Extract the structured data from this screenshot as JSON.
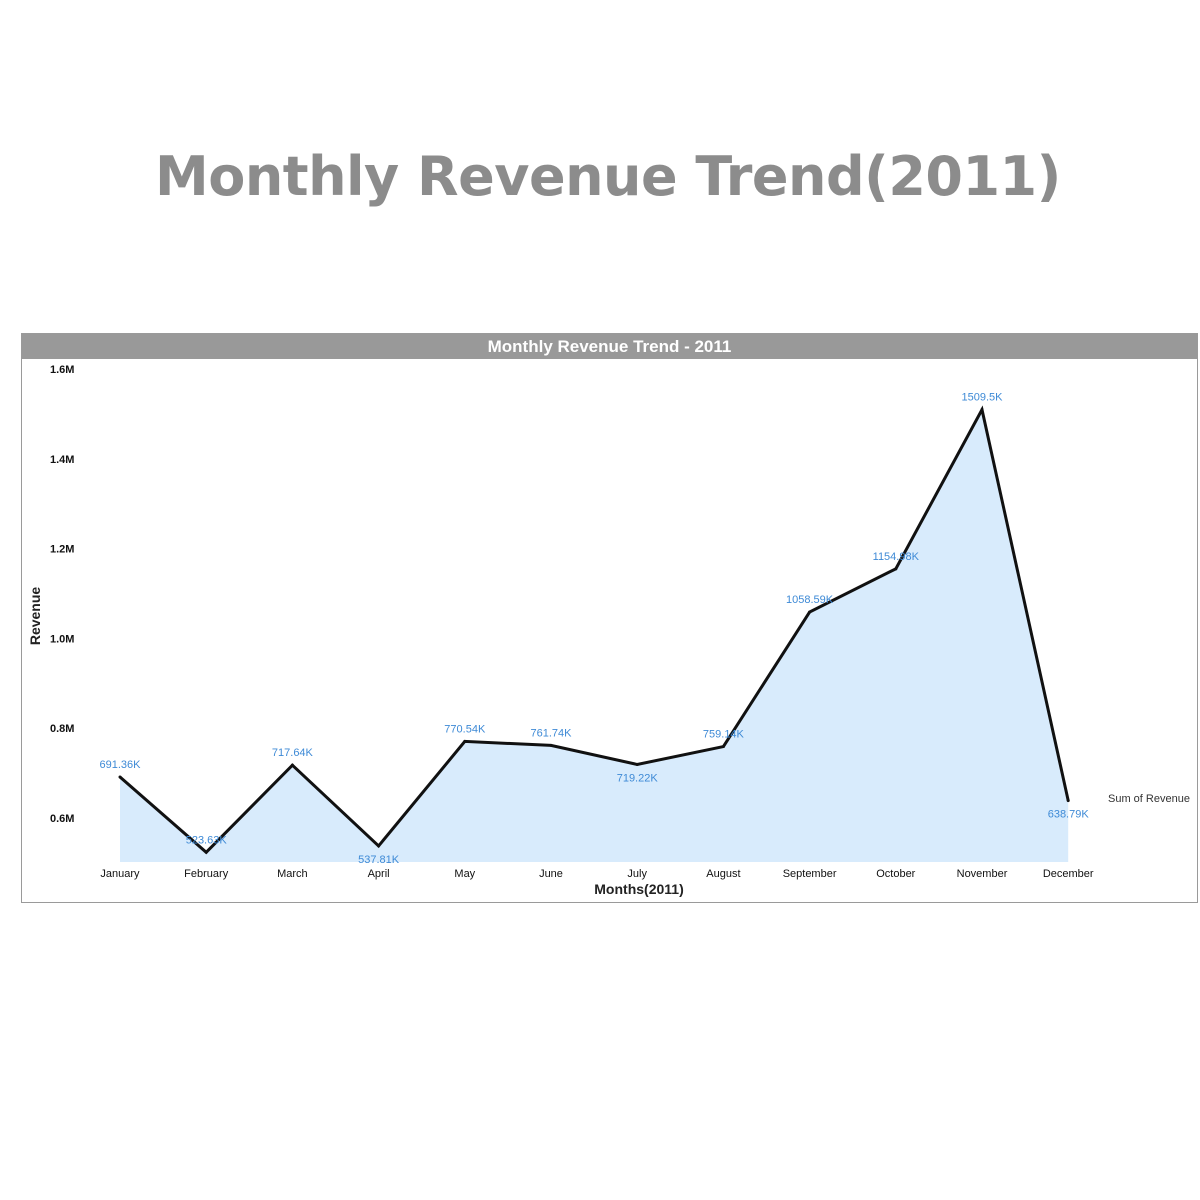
{
  "page_title": "Monthly Revenue Trend(2011)",
  "chart_data": {
    "type": "area",
    "title": "Monthly Revenue Trend - 2011",
    "xlabel": "Months(2011)",
    "ylabel": "Revenue",
    "categories": [
      "January",
      "February",
      "March",
      "April",
      "May",
      "June",
      "July",
      "August",
      "September",
      "October",
      "November",
      "December"
    ],
    "series": [
      {
        "name": "Sum of Revenue",
        "values": [
          691.36,
          523.63,
          717.64,
          537.81,
          770.54,
          761.74,
          719.22,
          759.14,
          1058.59,
          1154.98,
          1509.5,
          638.79
        ],
        "labels": [
          "691.36K",
          "523.63K",
          "717.64K",
          "537.81K",
          "770.54K",
          "761.74K",
          "719.22K",
          "759.14K",
          "1058.59K",
          "1154.98K",
          "1509.5K",
          "638.79K"
        ]
      }
    ],
    "y_unit": "K",
    "yticks": [
      0.6,
      0.8,
      1.0,
      1.2,
      1.4,
      1.6
    ],
    "ytick_labels": [
      "0.6M",
      "0.8M",
      "1.0M",
      "1.2M",
      "1.4M",
      "1.6M"
    ],
    "ylim": [
      0.5,
      1.6
    ],
    "grid": false,
    "legend_position": "right",
    "colors": {
      "fill": "#d8ebfc",
      "line": "#111111",
      "labels": "#3e8ad6",
      "header": "#999999"
    }
  }
}
